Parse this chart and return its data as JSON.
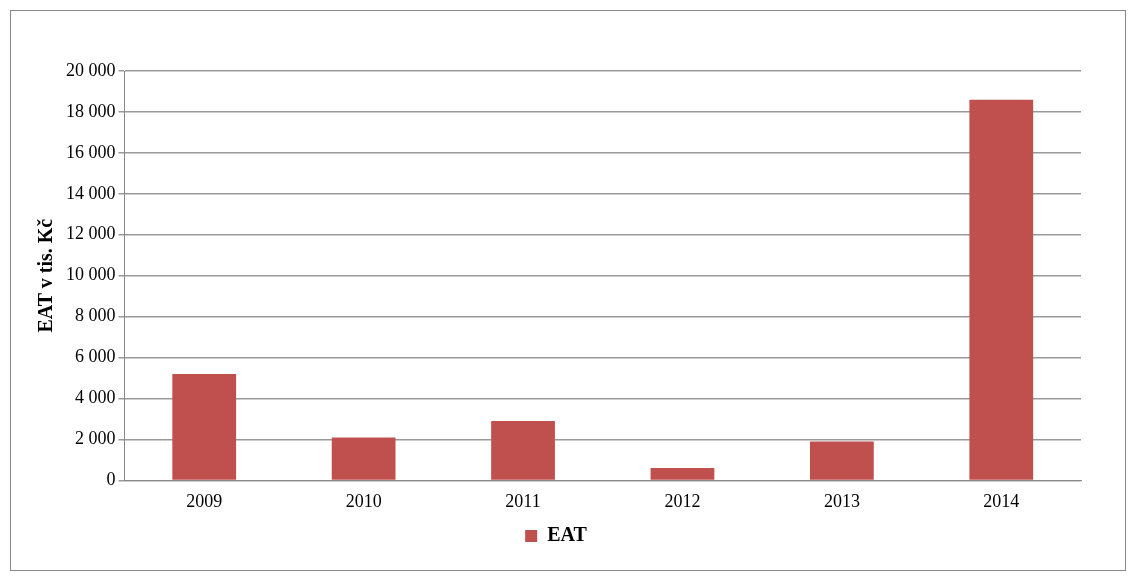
{
  "chart_data": {
    "type": "bar",
    "ylabel": "EAT v tis. Kč",
    "categories": [
      "2009",
      "2010",
      "2011",
      "2012",
      "2013",
      "2014"
    ],
    "series": [
      {
        "name": "EAT",
        "color": "#c0504d",
        "values": [
          5200,
          2100,
          2900,
          600,
          1900,
          18600
        ]
      }
    ],
    "ylim": [
      0,
      20000
    ],
    "yticks": [
      {
        "value": 0,
        "label": "0"
      },
      {
        "value": 2000,
        "label": "2 000"
      },
      {
        "value": 4000,
        "label": "4 000"
      },
      {
        "value": 6000,
        "label": "6 000"
      },
      {
        "value": 8000,
        "label": "8 000"
      },
      {
        "value": 10000,
        "label": "10 000"
      },
      {
        "value": 12000,
        "label": "12 000"
      },
      {
        "value": 14000,
        "label": "14 000"
      },
      {
        "value": 16000,
        "label": "16 000"
      },
      {
        "value": 18000,
        "label": "18 000"
      },
      {
        "value": 20000,
        "label": "20 000"
      }
    ],
    "grid": "y",
    "legend": "bottom"
  }
}
